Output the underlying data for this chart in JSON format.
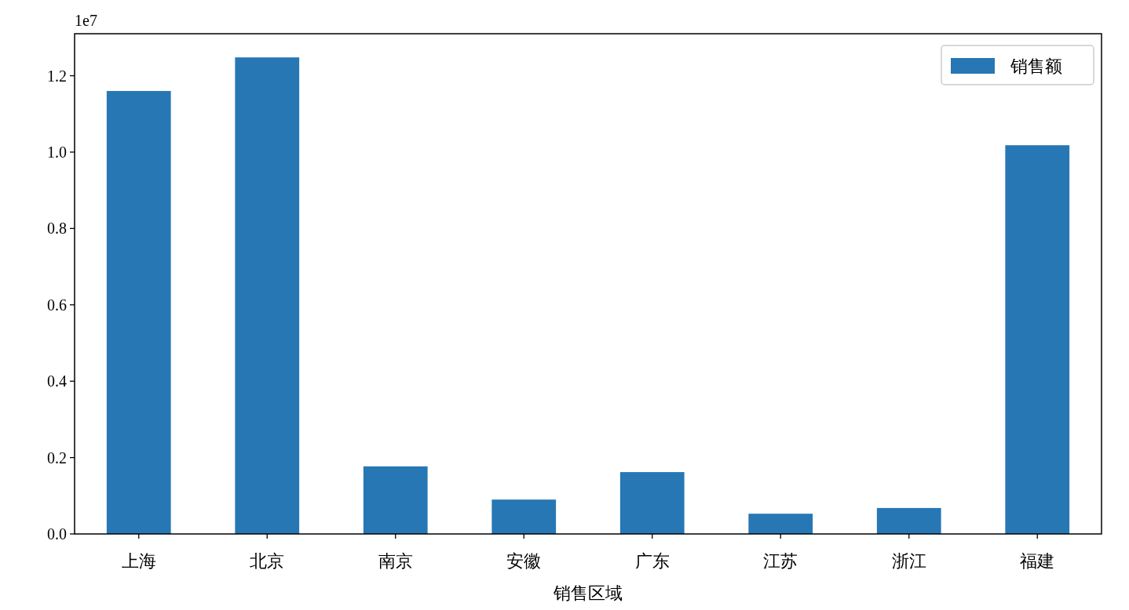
{
  "chart_data": {
    "type": "bar",
    "xlabel": "销售区域",
    "categories": [
      "上海",
      "北京",
      "南京",
      "安徽",
      "广东",
      "江苏",
      "浙江",
      "福建"
    ],
    "series": [
      {
        "name": "销售额",
        "color": "#2777b4",
        "values": [
          1.16,
          1.248,
          0.177,
          0.09,
          0.162,
          0.053,
          0.068,
          1.018
        ]
      }
    ],
    "ylim": [
      0,
      1.31
    ],
    "yticks": [
      {
        "value": 0,
        "label": "0.0"
      },
      0.2,
      0.4,
      0.6,
      0.8,
      {
        "value": 1,
        "label": "1.0"
      },
      1.2
    ],
    "annotations": [
      "1e7"
    ],
    "legend": "top right"
  }
}
